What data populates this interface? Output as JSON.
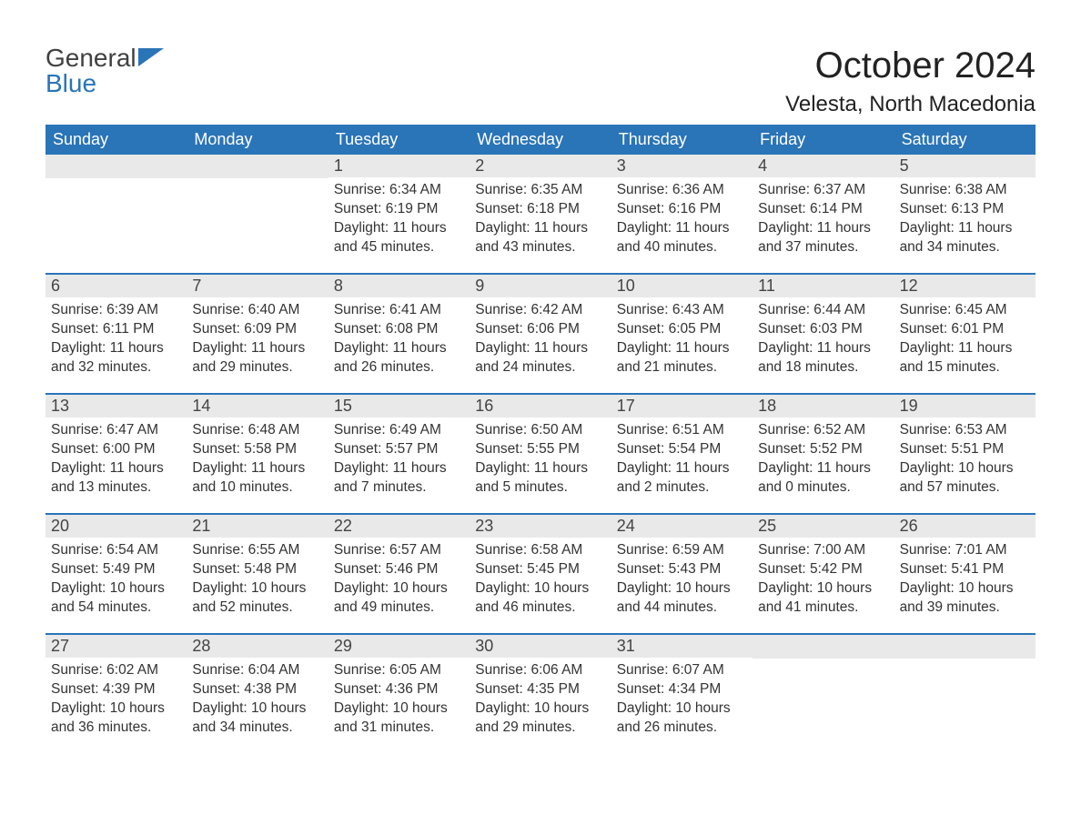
{
  "logo": {
    "top": "General",
    "bottom": "Blue",
    "triangle_color": "#2a74b8"
  },
  "title": "October 2024",
  "location": "Velesta, North Macedonia",
  "colors": {
    "header_bg": "#2a74b8",
    "header_text": "#ffffff",
    "daynum_bg": "#e9e9e9",
    "border": "#2a74b8",
    "body_text": "#333333"
  },
  "weekdays": [
    "Sunday",
    "Monday",
    "Tuesday",
    "Wednesday",
    "Thursday",
    "Friday",
    "Saturday"
  ],
  "weeks": [
    [
      null,
      null,
      {
        "n": "1",
        "sr": "Sunrise: 6:34 AM",
        "ss": "Sunset: 6:19 PM",
        "d1": "Daylight: 11 hours",
        "d2": "and 45 minutes."
      },
      {
        "n": "2",
        "sr": "Sunrise: 6:35 AM",
        "ss": "Sunset: 6:18 PM",
        "d1": "Daylight: 11 hours",
        "d2": "and 43 minutes."
      },
      {
        "n": "3",
        "sr": "Sunrise: 6:36 AM",
        "ss": "Sunset: 6:16 PM",
        "d1": "Daylight: 11 hours",
        "d2": "and 40 minutes."
      },
      {
        "n": "4",
        "sr": "Sunrise: 6:37 AM",
        "ss": "Sunset: 6:14 PM",
        "d1": "Daylight: 11 hours",
        "d2": "and 37 minutes."
      },
      {
        "n": "5",
        "sr": "Sunrise: 6:38 AM",
        "ss": "Sunset: 6:13 PM",
        "d1": "Daylight: 11 hours",
        "d2": "and 34 minutes."
      }
    ],
    [
      {
        "n": "6",
        "sr": "Sunrise: 6:39 AM",
        "ss": "Sunset: 6:11 PM",
        "d1": "Daylight: 11 hours",
        "d2": "and 32 minutes."
      },
      {
        "n": "7",
        "sr": "Sunrise: 6:40 AM",
        "ss": "Sunset: 6:09 PM",
        "d1": "Daylight: 11 hours",
        "d2": "and 29 minutes."
      },
      {
        "n": "8",
        "sr": "Sunrise: 6:41 AM",
        "ss": "Sunset: 6:08 PM",
        "d1": "Daylight: 11 hours",
        "d2": "and 26 minutes."
      },
      {
        "n": "9",
        "sr": "Sunrise: 6:42 AM",
        "ss": "Sunset: 6:06 PM",
        "d1": "Daylight: 11 hours",
        "d2": "and 24 minutes."
      },
      {
        "n": "10",
        "sr": "Sunrise: 6:43 AM",
        "ss": "Sunset: 6:05 PM",
        "d1": "Daylight: 11 hours",
        "d2": "and 21 minutes."
      },
      {
        "n": "11",
        "sr": "Sunrise: 6:44 AM",
        "ss": "Sunset: 6:03 PM",
        "d1": "Daylight: 11 hours",
        "d2": "and 18 minutes."
      },
      {
        "n": "12",
        "sr": "Sunrise: 6:45 AM",
        "ss": "Sunset: 6:01 PM",
        "d1": "Daylight: 11 hours",
        "d2": "and 15 minutes."
      }
    ],
    [
      {
        "n": "13",
        "sr": "Sunrise: 6:47 AM",
        "ss": "Sunset: 6:00 PM",
        "d1": "Daylight: 11 hours",
        "d2": "and 13 minutes."
      },
      {
        "n": "14",
        "sr": "Sunrise: 6:48 AM",
        "ss": "Sunset: 5:58 PM",
        "d1": "Daylight: 11 hours",
        "d2": "and 10 minutes."
      },
      {
        "n": "15",
        "sr": "Sunrise: 6:49 AM",
        "ss": "Sunset: 5:57 PM",
        "d1": "Daylight: 11 hours",
        "d2": "and 7 minutes."
      },
      {
        "n": "16",
        "sr": "Sunrise: 6:50 AM",
        "ss": "Sunset: 5:55 PM",
        "d1": "Daylight: 11 hours",
        "d2": "and 5 minutes."
      },
      {
        "n": "17",
        "sr": "Sunrise: 6:51 AM",
        "ss": "Sunset: 5:54 PM",
        "d1": "Daylight: 11 hours",
        "d2": "and 2 minutes."
      },
      {
        "n": "18",
        "sr": "Sunrise: 6:52 AM",
        "ss": "Sunset: 5:52 PM",
        "d1": "Daylight: 11 hours",
        "d2": "and 0 minutes."
      },
      {
        "n": "19",
        "sr": "Sunrise: 6:53 AM",
        "ss": "Sunset: 5:51 PM",
        "d1": "Daylight: 10 hours",
        "d2": "and 57 minutes."
      }
    ],
    [
      {
        "n": "20",
        "sr": "Sunrise: 6:54 AM",
        "ss": "Sunset: 5:49 PM",
        "d1": "Daylight: 10 hours",
        "d2": "and 54 minutes."
      },
      {
        "n": "21",
        "sr": "Sunrise: 6:55 AM",
        "ss": "Sunset: 5:48 PM",
        "d1": "Daylight: 10 hours",
        "d2": "and 52 minutes."
      },
      {
        "n": "22",
        "sr": "Sunrise: 6:57 AM",
        "ss": "Sunset: 5:46 PM",
        "d1": "Daylight: 10 hours",
        "d2": "and 49 minutes."
      },
      {
        "n": "23",
        "sr": "Sunrise: 6:58 AM",
        "ss": "Sunset: 5:45 PM",
        "d1": "Daylight: 10 hours",
        "d2": "and 46 minutes."
      },
      {
        "n": "24",
        "sr": "Sunrise: 6:59 AM",
        "ss": "Sunset: 5:43 PM",
        "d1": "Daylight: 10 hours",
        "d2": "and 44 minutes."
      },
      {
        "n": "25",
        "sr": "Sunrise: 7:00 AM",
        "ss": "Sunset: 5:42 PM",
        "d1": "Daylight: 10 hours",
        "d2": "and 41 minutes."
      },
      {
        "n": "26",
        "sr": "Sunrise: 7:01 AM",
        "ss": "Sunset: 5:41 PM",
        "d1": "Daylight: 10 hours",
        "d2": "and 39 minutes."
      }
    ],
    [
      {
        "n": "27",
        "sr": "Sunrise: 6:02 AM",
        "ss": "Sunset: 4:39 PM",
        "d1": "Daylight: 10 hours",
        "d2": "and 36 minutes."
      },
      {
        "n": "28",
        "sr": "Sunrise: 6:04 AM",
        "ss": "Sunset: 4:38 PM",
        "d1": "Daylight: 10 hours",
        "d2": "and 34 minutes."
      },
      {
        "n": "29",
        "sr": "Sunrise: 6:05 AM",
        "ss": "Sunset: 4:36 PM",
        "d1": "Daylight: 10 hours",
        "d2": "and 31 minutes."
      },
      {
        "n": "30",
        "sr": "Sunrise: 6:06 AM",
        "ss": "Sunset: 4:35 PM",
        "d1": "Daylight: 10 hours",
        "d2": "and 29 minutes."
      },
      {
        "n": "31",
        "sr": "Sunrise: 6:07 AM",
        "ss": "Sunset: 4:34 PM",
        "d1": "Daylight: 10 hours",
        "d2": "and 26 minutes."
      },
      null,
      null
    ]
  ]
}
